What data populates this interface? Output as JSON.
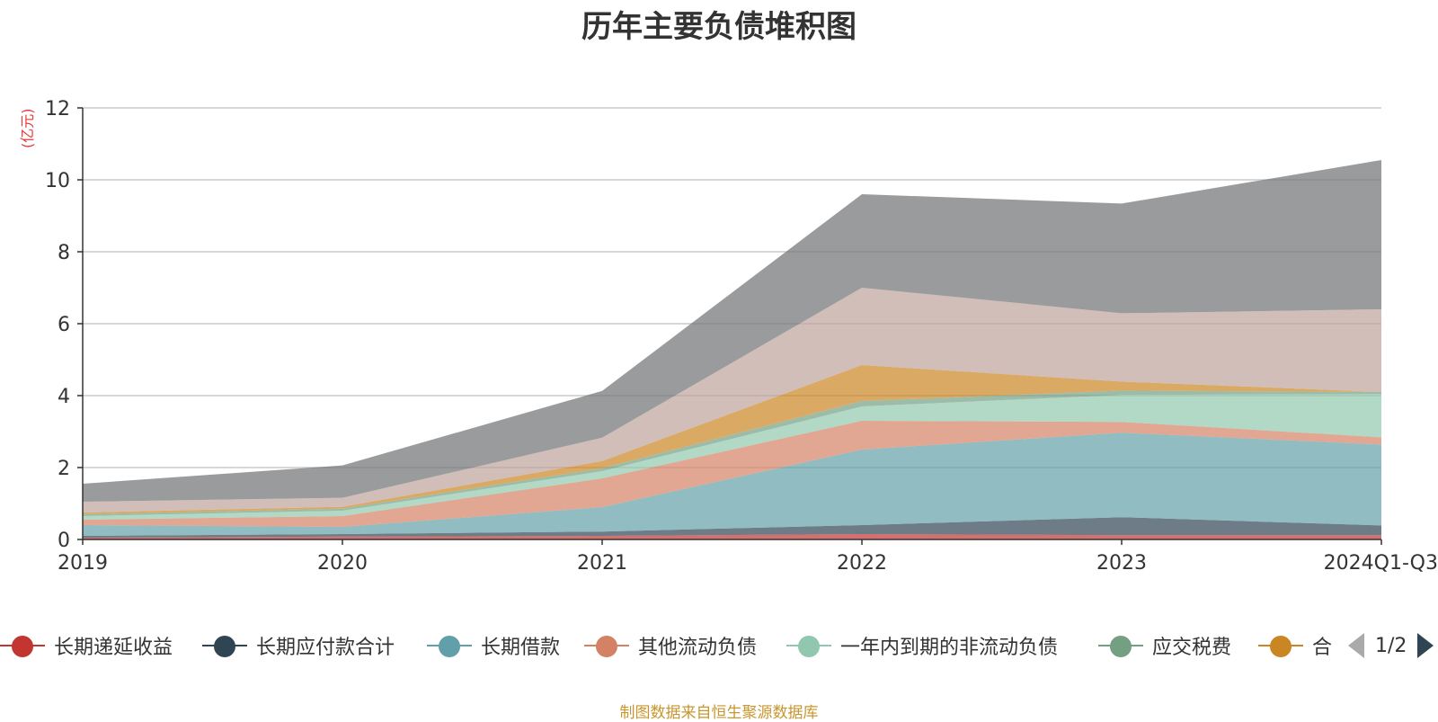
{
  "chart_data": {
    "type": "area",
    "stacked": true,
    "title": "历年主要负债堆积图",
    "ylabel": "(亿元)",
    "ylim": [
      0,
      12
    ],
    "yticks": [
      0,
      2,
      4,
      6,
      8,
      10,
      12
    ],
    "grid": true,
    "categories": [
      "2019",
      "2020",
      "2021",
      "2022",
      "2023",
      "2024Q1-Q3"
    ],
    "series": [
      {
        "name": "长期递延收益",
        "color": "#c23531",
        "values": [
          0.05,
          0.08,
          0.1,
          0.15,
          0.12,
          0.12
        ]
      },
      {
        "name": "长期应付款合计",
        "color": "#2f4554",
        "values": [
          0.05,
          0.07,
          0.12,
          0.25,
          0.5,
          0.27
        ]
      },
      {
        "name": "长期借款",
        "color": "#61a0a8",
        "values": [
          0.3,
          0.2,
          0.68,
          2.1,
          2.35,
          2.25
        ]
      },
      {
        "name": "其他流动负债",
        "color": "#d48265",
        "values": [
          0.15,
          0.3,
          0.8,
          0.8,
          0.3,
          0.2
        ]
      },
      {
        "name": "一年内到期的非流动负债",
        "color": "#91c7ae",
        "values": [
          0.1,
          0.15,
          0.2,
          0.4,
          0.75,
          1.2
        ]
      },
      {
        "name": "应交税费",
        "color": "#749f83",
        "values": [
          0.05,
          0.06,
          0.08,
          0.15,
          0.12,
          0.06
        ]
      },
      {
        "name": "合同负债",
        "color": "#ca8622",
        "values": [
          0.05,
          0.05,
          0.2,
          1.0,
          0.25,
          0.0
        ]
      },
      {
        "name": "",
        "color": "#bda29a",
        "values": [
          0.3,
          0.25,
          0.65,
          2.15,
          1.9,
          2.3
        ]
      },
      {
        "name": "",
        "color": "#6e7074",
        "values": [
          0.5,
          0.9,
          1.3,
          2.6,
          3.05,
          4.15
        ]
      }
    ]
  },
  "legend": {
    "items": [
      {
        "label": "长期递延收益",
        "color": "#c23531"
      },
      {
        "label": "长期应付款合计",
        "color": "#2f4554"
      },
      {
        "label": "长期借款",
        "color": "#61a0a8"
      },
      {
        "label": "其他流动负债",
        "color": "#d48265"
      },
      {
        "label": "一年内到期的非流动负债",
        "color": "#91c7ae"
      },
      {
        "label": "应交税费",
        "color": "#749f83"
      },
      {
        "label": "合",
        "color": "#ca8622"
      }
    ],
    "page": "1/2"
  },
  "source": "制图数据来自恒生聚源数据库"
}
